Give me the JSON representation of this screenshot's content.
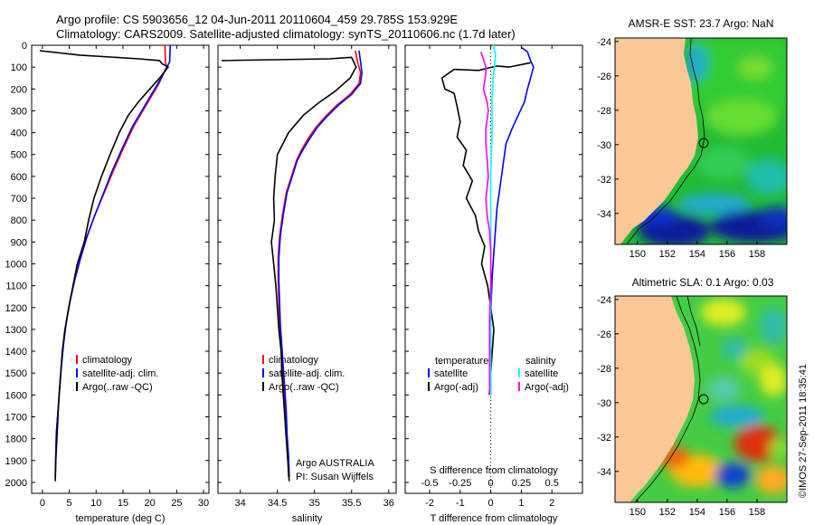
{
  "title": {
    "line1": "Argo profile: CS 5903656_12 04-Jun-2011 20110604_459 29.785S 153.929E",
    "line2": "Climatology: CARS2009. Satellite-adjusted climatology: synTS_20110606.nc (1.7d later)"
  },
  "copyright": "©IMOS 27-Sep-2011 18:35:41",
  "info": {
    "program": "Argo AUSTRALIA",
    "pi": "PI: Susan Wijffels"
  },
  "colors": {
    "climatology": "#ff0000",
    "satellite": "#0000ff",
    "argo": "#000000",
    "sat_salinity": "#00ffff",
    "argo_salinity_adj": "#ff00ff",
    "land": "#f9c896"
  },
  "chart_data": [
    {
      "type": "line",
      "panel": "temperature",
      "xlabel": "temperature (deg C)",
      "ylabel": "",
      "xlim": [
        -2,
        31
      ],
      "ylim": [
        0,
        2050
      ],
      "y_reversed": true,
      "xticks": [
        0,
        5,
        10,
        15,
        20,
        25,
        30
      ],
      "yticks": [
        0,
        100,
        200,
        300,
        400,
        500,
        600,
        700,
        800,
        900,
        1000,
        1100,
        1200,
        1300,
        1400,
        1500,
        1600,
        1700,
        1800,
        1900,
        2000
      ],
      "legend": [
        "climatology",
        "satellite-adj. clim.",
        "Argo(..raw -QC)"
      ],
      "series": [
        {
          "name": "climatology",
          "color": "#ff0000",
          "points": [
            [
              22.8,
              0
            ],
            [
              22.9,
              75
            ],
            [
              23.1,
              100
            ],
            [
              21.7,
              175
            ],
            [
              19.3,
              275
            ],
            [
              16.9,
              375
            ],
            [
              15.0,
              475
            ],
            [
              13.2,
              575
            ],
            [
              11.5,
              675
            ],
            [
              9.8,
              775
            ],
            [
              8.3,
              875
            ],
            [
              7.1,
              975
            ],
            [
              6.0,
              1075
            ],
            [
              5.1,
              1175
            ],
            [
              4.4,
              1275
            ],
            [
              3.9,
              1375
            ],
            [
              3.5,
              1475
            ],
            [
              3.2,
              1575
            ],
            [
              2.9,
              1675
            ],
            [
              2.6,
              1775
            ],
            [
              2.5,
              1875
            ],
            [
              2.4,
              1975
            ]
          ]
        },
        {
          "name": "satellite-adj. clim.",
          "color": "#0000ff",
          "points": [
            [
              23.8,
              0
            ],
            [
              23.7,
              75
            ],
            [
              23.2,
              100
            ],
            [
              21.5,
              175
            ],
            [
              19.1,
              275
            ],
            [
              16.7,
              375
            ],
            [
              14.8,
              475
            ],
            [
              13.0,
              575
            ],
            [
              11.4,
              675
            ],
            [
              9.8,
              775
            ],
            [
              8.3,
              875
            ],
            [
              7.1,
              975
            ],
            [
              6.0,
              1075
            ],
            [
              5.1,
              1175
            ],
            [
              4.4,
              1275
            ],
            [
              3.9,
              1375
            ],
            [
              3.5,
              1475
            ],
            [
              3.2,
              1575
            ],
            [
              2.9,
              1675
            ],
            [
              2.6,
              1775
            ],
            [
              2.5,
              1875
            ],
            [
              2.4,
              1975
            ]
          ]
        },
        {
          "name": "Argo(..raw -QC)",
          "color": "#000000",
          "points": [
            [
              -0.5,
              25
            ],
            [
              7,
              45
            ],
            [
              18,
              62
            ],
            [
              21.8,
              70
            ],
            [
              22.3,
              85
            ],
            [
              23.4,
              100
            ],
            [
              21.8,
              150
            ],
            [
              20.0,
              200
            ],
            [
              18.0,
              255
            ],
            [
              16.0,
              320
            ],
            [
              14.3,
              400
            ],
            [
              12.6,
              500
            ],
            [
              11.0,
              600
            ],
            [
              9.6,
              700
            ],
            [
              8.6,
              800
            ],
            [
              7.8,
              900
            ],
            [
              6.5,
              1000
            ],
            [
              5.7,
              1100
            ],
            [
              4.9,
              1200
            ],
            [
              4.2,
              1300
            ],
            [
              3.7,
              1400
            ],
            [
              3.4,
              1500
            ],
            [
              3.1,
              1600
            ],
            [
              2.9,
              1700
            ],
            [
              2.7,
              1800
            ],
            [
              2.5,
              1900
            ],
            [
              2.4,
              1995
            ]
          ]
        }
      ]
    },
    {
      "type": "line",
      "panel": "salinity",
      "xlabel": "salinity",
      "xlim": [
        33.7,
        36.1
      ],
      "ylim": [
        0,
        2050
      ],
      "y_reversed": true,
      "xticks": [
        34,
        34.5,
        35,
        35.5,
        36
      ],
      "legend": [
        "climatology",
        "satellite-adj. clim.",
        "Argo(..raw -QC)"
      ],
      "series": [
        {
          "name": "climatology",
          "color": "#ff0000",
          "points": [
            [
              35.55,
              25
            ],
            [
              35.58,
              75
            ],
            [
              35.62,
              125
            ],
            [
              35.6,
              175
            ],
            [
              35.48,
              225
            ],
            [
              35.3,
              275
            ],
            [
              35.15,
              325
            ],
            [
              35.02,
              375
            ],
            [
              34.92,
              425
            ],
            [
              34.83,
              475
            ],
            [
              34.76,
              525
            ],
            [
              34.69,
              600
            ],
            [
              34.62,
              675
            ],
            [
              34.57,
              775
            ],
            [
              34.53,
              875
            ],
            [
              34.51,
              975
            ],
            [
              34.51,
              1075
            ],
            [
              34.52,
              1175
            ],
            [
              34.53,
              1275
            ],
            [
              34.55,
              1375
            ],
            [
              34.57,
              1475
            ],
            [
              34.59,
              1575
            ],
            [
              34.61,
              1675
            ],
            [
              34.62,
              1775
            ],
            [
              34.64,
              1875
            ],
            [
              34.65,
              1975
            ]
          ]
        },
        {
          "name": "satellite-adj. clim.",
          "color": "#0000ff",
          "points": [
            [
              35.6,
              25
            ],
            [
              35.62,
              75
            ],
            [
              35.64,
              125
            ],
            [
              35.62,
              175
            ],
            [
              35.5,
              225
            ],
            [
              35.32,
              275
            ],
            [
              35.17,
              325
            ],
            [
              35.04,
              375
            ],
            [
              34.94,
              425
            ],
            [
              34.85,
              475
            ],
            [
              34.77,
              525
            ],
            [
              34.7,
              600
            ],
            [
              34.63,
              675
            ],
            [
              34.58,
              775
            ],
            [
              34.54,
              875
            ],
            [
              34.52,
              975
            ],
            [
              34.52,
              1075
            ],
            [
              34.53,
              1175
            ],
            [
              34.54,
              1275
            ],
            [
              34.56,
              1375
            ],
            [
              34.58,
              1475
            ],
            [
              34.6,
              1575
            ],
            [
              34.62,
              1675
            ],
            [
              34.63,
              1775
            ],
            [
              34.65,
              1875
            ],
            [
              34.66,
              1975
            ]
          ]
        },
        {
          "name": "Argo(..raw -QC)",
          "color": "#000000",
          "points": [
            [
              33.75,
              70
            ],
            [
              35.2,
              62
            ],
            [
              35.5,
              55
            ],
            [
              35.56,
              100
            ],
            [
              35.48,
              150
            ],
            [
              35.28,
              210
            ],
            [
              35.05,
              265
            ],
            [
              34.85,
              320
            ],
            [
              34.65,
              400
            ],
            [
              34.5,
              500
            ],
            [
              34.47,
              600
            ],
            [
              34.45,
              700
            ],
            [
              34.46,
              800
            ],
            [
              34.42,
              900
            ],
            [
              34.45,
              1000
            ],
            [
              34.48,
              1100
            ],
            [
              34.5,
              1200
            ],
            [
              34.52,
              1300
            ],
            [
              34.55,
              1400
            ],
            [
              34.56,
              1500
            ],
            [
              34.58,
              1600
            ],
            [
              34.6,
              1700
            ],
            [
              34.62,
              1800
            ],
            [
              34.64,
              1900
            ],
            [
              34.66,
              1995
            ]
          ]
        }
      ]
    },
    {
      "type": "line",
      "panel": "difference",
      "xlabel": "T difference from climatology",
      "x2label": "S difference from climatology",
      "xlim": [
        -2.8,
        3.0
      ],
      "ylim": [
        0,
        2050
      ],
      "y_reversed": true,
      "xticks": [
        -2,
        -1,
        0,
        1,
        2
      ],
      "x2ticks": [
        -0.5,
        -0.25,
        0,
        0.25,
        0.5
      ],
      "legend_headers": [
        "temperature",
        "salinity"
      ],
      "legend": [
        "satellite",
        "Argo(-adj)",
        "satellite",
        "Argo(-adj)"
      ],
      "series": [
        {
          "name": "satellite",
          "group": "temperature",
          "color": "#0000ff",
          "points": [
            [
              1.0,
              10
            ],
            [
              1.2,
              30
            ],
            [
              1.3,
              70
            ],
            [
              1.4,
              100
            ],
            [
              1.3,
              150
            ],
            [
              1.2,
              200
            ],
            [
              1.1,
              260
            ],
            [
              0.9,
              320
            ],
            [
              0.7,
              380
            ],
            [
              0.5,
              450
            ],
            [
              0.4,
              550
            ],
            [
              0.3,
              650
            ],
            [
              0.2,
              750
            ],
            [
              0.15,
              850
            ],
            [
              0.1,
              950
            ],
            [
              0.05,
              1050
            ],
            [
              0.02,
              1150
            ],
            [
              0,
              1250
            ],
            [
              0,
              1600
            ]
          ]
        },
        {
          "name": "Argo(-adj)",
          "group": "temperature",
          "color": "#000000",
          "points": [
            [
              1.3,
              80
            ],
            [
              0.6,
              100
            ],
            [
              0.2,
              95
            ],
            [
              -0.4,
              115
            ],
            [
              -1.2,
              110
            ],
            [
              -1.6,
              150
            ],
            [
              -1.5,
              200
            ],
            [
              -1.2,
              220
            ],
            [
              -1.1,
              280
            ],
            [
              -1.0,
              350
            ],
            [
              -1.1,
              420
            ],
            [
              -0.8,
              480
            ],
            [
              -0.9,
              550
            ],
            [
              -0.6,
              620
            ],
            [
              -0.8,
              700
            ],
            [
              -0.5,
              780
            ],
            [
              -0.4,
              850
            ],
            [
              -0.2,
              920
            ],
            [
              -0.3,
              1000
            ],
            [
              -0.1,
              1100
            ],
            [
              0,
              1200
            ],
            [
              0.1,
              1300
            ],
            [
              0.05,
              1400
            ],
            [
              0,
              1500
            ],
            [
              -0.05,
              1600
            ]
          ]
        },
        {
          "name": "satellite",
          "group": "salinity",
          "color": "#00ffff",
          "points": [
            [
              0.02,
              0
            ],
            [
              0.04,
              40
            ],
            [
              0.03,
              100
            ],
            [
              0.02,
              150
            ],
            [
              0.01,
              250
            ],
            [
              0.01,
              400
            ],
            [
              0,
              600
            ],
            [
              0,
              800
            ],
            [
              0,
              1000
            ],
            [
              0,
              1200
            ],
            [
              0,
              1600
            ]
          ]
        },
        {
          "name": "Argo(-adj)",
          "group": "salinity",
          "color": "#ff00ff",
          "points": [
            [
              -0.08,
              30
            ],
            [
              -0.04,
              100
            ],
            [
              -0.04,
              130
            ],
            [
              -0.06,
              200
            ],
            [
              -0.03,
              260
            ],
            [
              -0.02,
              300
            ],
            [
              -0.04,
              380
            ],
            [
              -0.04,
              450
            ],
            [
              -0.03,
              520
            ],
            [
              -0.02,
              600
            ],
            [
              -0.04,
              700
            ],
            [
              -0.03,
              780
            ],
            [
              -0.01,
              850
            ],
            [
              0,
              950
            ],
            [
              0,
              1100
            ],
            [
              -0.01,
              1250
            ],
            [
              -0.01,
              1400
            ],
            [
              -0.01,
              1500
            ],
            [
              -0.01,
              1600
            ]
          ]
        }
      ]
    },
    {
      "type": "heatmap",
      "panel": "map-sst",
      "title": "AMSR-E SST: 23.7 Argo: NaN",
      "xlim": [
        148.5,
        160
      ],
      "ylim": [
        -35.8,
        -23.8
      ],
      "xticks": [
        150,
        152,
        154,
        156,
        158
      ],
      "yticks": [
        -24,
        -26,
        -28,
        -30,
        -32,
        -34
      ],
      "float_position": [
        153.93,
        -29.79
      ]
    },
    {
      "type": "heatmap",
      "panel": "map-sla",
      "title": "Altimetric SLA: 0.1 Argo: 0.03",
      "xlim": [
        148.5,
        160
      ],
      "ylim": [
        -35.8,
        -23.8
      ],
      "xticks": [
        150,
        152,
        154,
        156,
        158
      ],
      "yticks": [
        -24,
        -26,
        -28,
        -30,
        -32,
        -34
      ],
      "float_position": [
        153.93,
        -29.79
      ]
    }
  ]
}
